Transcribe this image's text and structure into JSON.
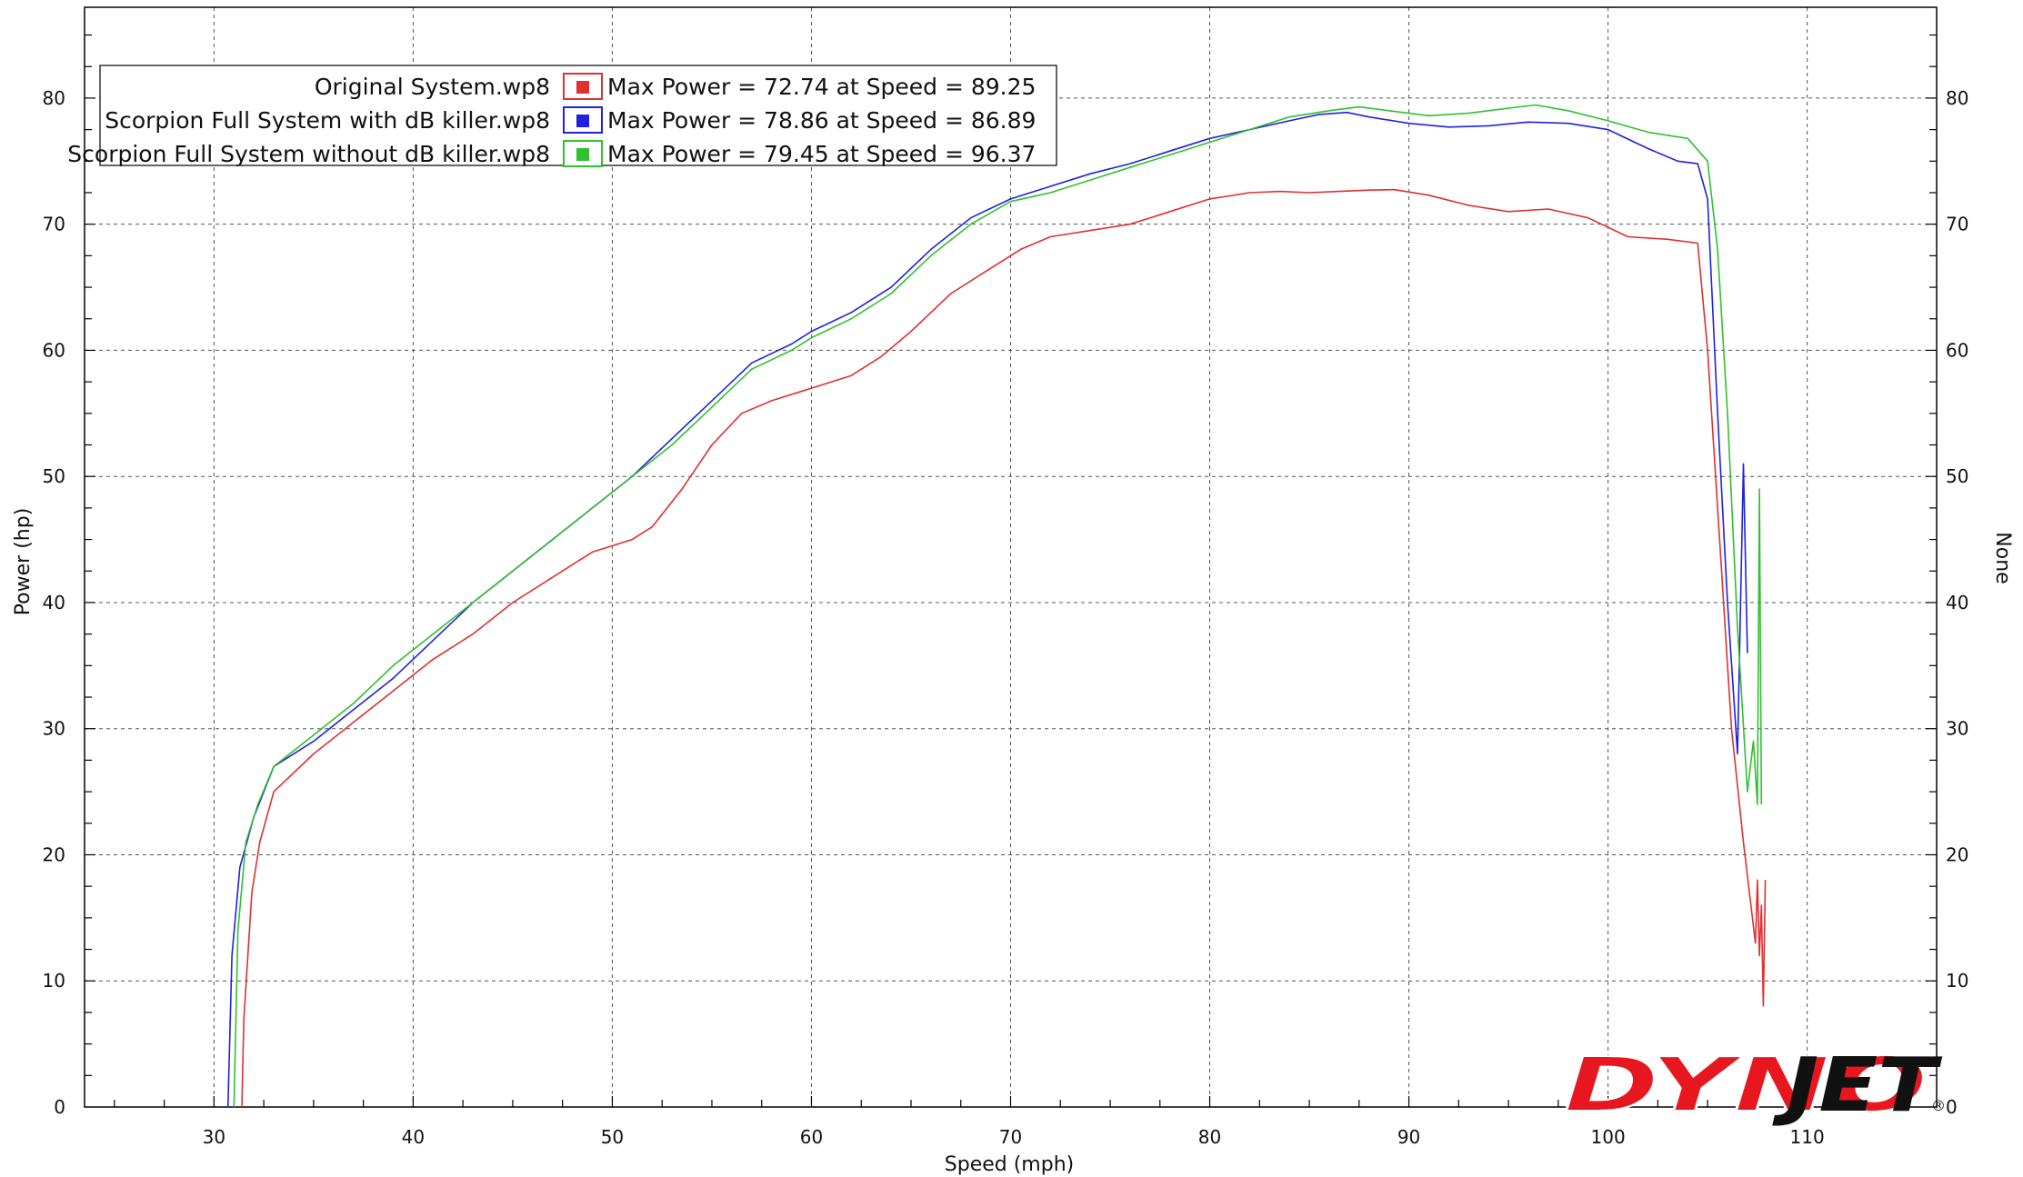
{
  "chart_data": {
    "type": "line",
    "xlabel": "Speed (mph)",
    "ylabel": "Power (hp)",
    "y2label": "None",
    "xlim": [
      23.5,
      116.5
    ],
    "ylim": [
      0,
      87.2
    ],
    "x_ticks": [
      30,
      40,
      50,
      60,
      70,
      80,
      90,
      100,
      110
    ],
    "y_ticks": [
      0,
      10,
      20,
      30,
      40,
      50,
      60,
      70,
      80
    ],
    "grid": true,
    "legend_position": "top-left",
    "series": [
      {
        "name": "Original System.wp8",
        "stat": "Max Power = 72.74 at Speed = 89.25",
        "color": "#e03030",
        "x": [
          31.4,
          31.5,
          31.9,
          32.3,
          33.0,
          35.0,
          37.0,
          39.0,
          41.0,
          43.0,
          45.0,
          47.0,
          49.0,
          51.0,
          52.0,
          53.5,
          55.0,
          56.5,
          58.0,
          60.0,
          62.0,
          63.5,
          65.0,
          67.0,
          69.0,
          70.5,
          72.0,
          74.0,
          76.0,
          78.0,
          80.0,
          82.0,
          83.5,
          85.0,
          86.5,
          88.0,
          89.25,
          91.0,
          93.0,
          95.0,
          97.0,
          99.0,
          101.0,
          103.0,
          104.5,
          105.0,
          105.6,
          106.2,
          106.8,
          107.1,
          107.4,
          107.5,
          107.6,
          107.7,
          107.8,
          107.9
        ],
        "y": [
          0,
          7,
          17,
          21,
          25,
          28,
          30.5,
          33,
          35.5,
          37.5,
          40,
          42,
          44,
          45,
          46,
          49,
          52.5,
          55,
          56,
          57,
          58,
          59.5,
          61.5,
          64.5,
          66.5,
          68,
          69,
          69.5,
          70,
          71,
          72,
          72.5,
          72.6,
          72.5,
          72.6,
          72.7,
          72.74,
          72.3,
          71.5,
          71,
          71.2,
          70.5,
          69,
          68.8,
          68.5,
          60,
          45,
          30,
          21,
          17,
          13,
          18,
          12,
          16,
          8,
          18
        ],
        "x_fix": true
      },
      {
        "name": "Scorpion Full System with dB killer.wp8",
        "stat": "Max Power = 78.86 at Speed = 86.89",
        "color": "#2020e0",
        "x": [
          30.7,
          30.9,
          31.3,
          32.0,
          33.0,
          35.0,
          37.0,
          39.0,
          41.0,
          43.0,
          45.0,
          47.0,
          49.0,
          51.0,
          53.0,
          55.0,
          57.0,
          59.0,
          60.0,
          62.0,
          64.0,
          66.0,
          68.0,
          70.0,
          72.0,
          74.0,
          76.0,
          78.0,
          80.0,
          82.0,
          84.0,
          85.5,
          86.89,
          88.0,
          90.0,
          92.0,
          94.0,
          96.0,
          98.0,
          100.0,
          102.0,
          103.5,
          104.5,
          105.0,
          105.5,
          106.0,
          106.5,
          106.8,
          107.0
        ],
        "y": [
          0,
          12,
          19,
          23,
          27,
          29,
          31.5,
          34,
          37,
          40,
          42.5,
          45,
          47.5,
          50,
          53,
          56,
          59,
          60.5,
          61.5,
          63,
          65,
          68,
          70.5,
          72,
          73,
          74,
          74.8,
          75.8,
          76.8,
          77.5,
          78.2,
          78.7,
          78.86,
          78.5,
          78,
          77.7,
          77.8,
          78.1,
          78,
          77.5,
          76,
          75,
          74.8,
          72,
          55,
          40,
          28,
          51,
          36
        ],
        "x_fix": true
      },
      {
        "name": "Scorpion Full System without dB killer.wp8",
        "stat": "Max Power = 79.45 at Speed = 96.37",
        "color": "#30c030",
        "x": [
          31.0,
          31.2,
          31.6,
          32.2,
          33.0,
          35.0,
          37.0,
          39.0,
          41.0,
          43.0,
          45.0,
          47.0,
          49.0,
          51.0,
          53.0,
          55.0,
          57.0,
          59.0,
          60.0,
          62.0,
          64.0,
          66.0,
          68.0,
          70.0,
          72.0,
          74.0,
          76.0,
          78.0,
          80.0,
          82.0,
          84.0,
          86.0,
          87.5,
          89.0,
          91.0,
          93.0,
          95.0,
          96.37,
          98.0,
          100.0,
          102.0,
          104.0,
          105.0,
          105.5,
          106.0,
          106.5,
          107.0,
          107.3,
          107.5,
          107.6,
          107.7
        ],
        "y": [
          0,
          14,
          21,
          24,
          27,
          29.5,
          32,
          35,
          37.5,
          40,
          42.5,
          45,
          47.5,
          50,
          52.5,
          55.5,
          58.5,
          60,
          61,
          62.5,
          64.5,
          67.5,
          70,
          71.8,
          72.5,
          73.5,
          74.5,
          75.5,
          76.5,
          77.5,
          78.5,
          79,
          79.3,
          79,
          78.6,
          78.8,
          79.2,
          79.45,
          79,
          78.2,
          77.3,
          76.8,
          75,
          68,
          55,
          38,
          25,
          29,
          24,
          49,
          24
        ],
        "x_fix": true
      }
    ]
  },
  "brand": {
    "logo_text": "DYNOJET",
    "mark": "®"
  }
}
